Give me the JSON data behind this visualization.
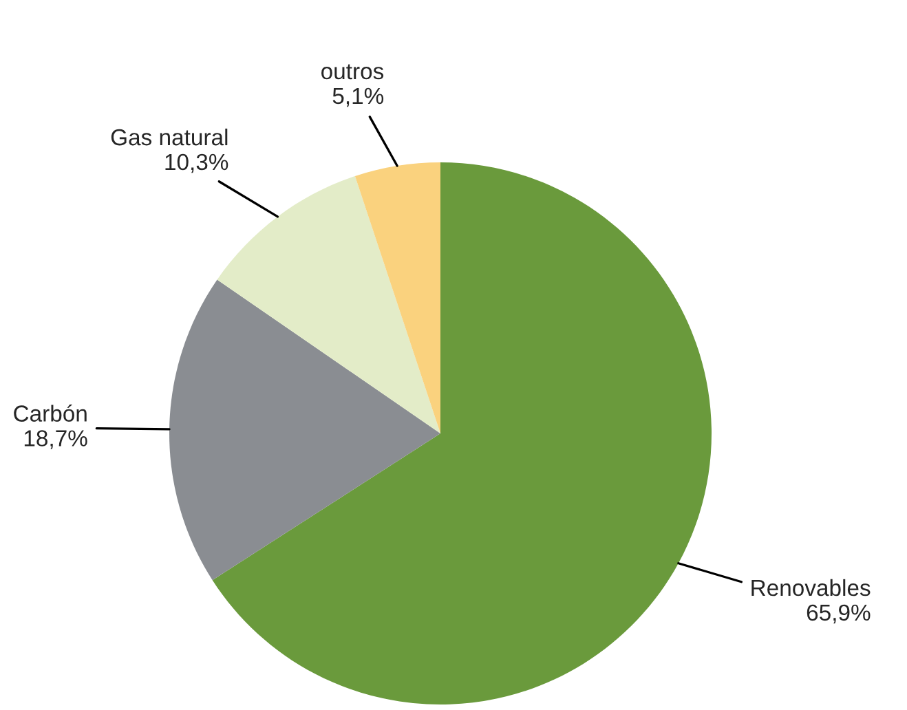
{
  "chart_data": {
    "type": "pie",
    "categories": [
      "Renovables",
      "Carbón",
      "Gas natural",
      "outros"
    ],
    "values": [
      65.9,
      18.7,
      10.3,
      5.1
    ],
    "value_labels": [
      "65,9%",
      "18,7%",
      "10,3%",
      "5,1%"
    ],
    "colors": [
      "#6a9a3c",
      "#8a8d92",
      "#e3ecc8",
      "#fad27e"
    ]
  }
}
